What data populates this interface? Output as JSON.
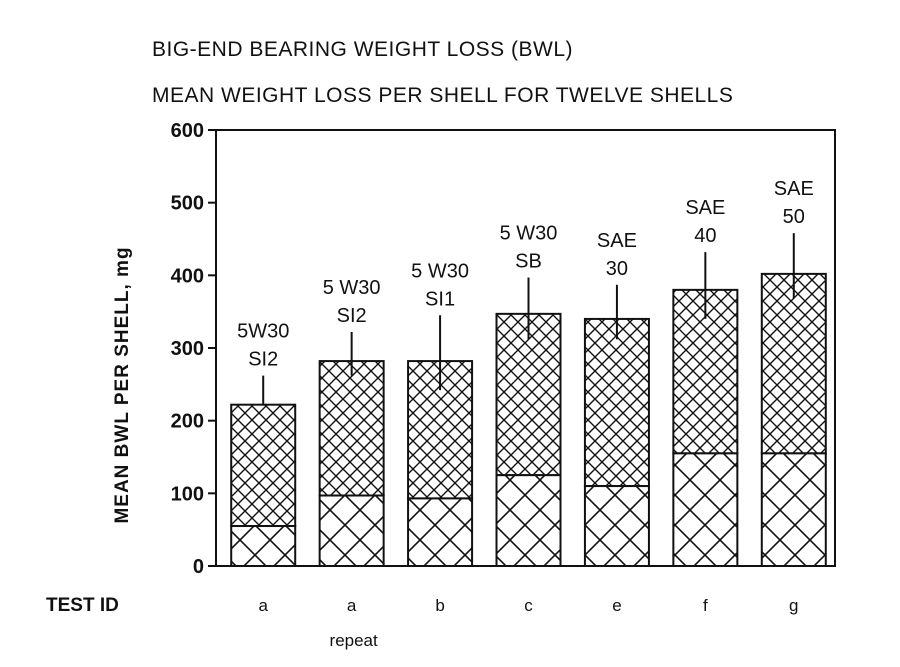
{
  "chart_data": {
    "type": "bar",
    "title": "BIG-END BEARING WEIGHT LOSS (BWL)",
    "subtitle": "MEAN WEIGHT LOSS PER SHELL FOR TWELVE SHELLS",
    "ylabel": "MEAN BWL PER SHELL, mg",
    "xaxis_title": "TEST ID",
    "ylim": [
      0,
      600
    ],
    "yticks": [
      "0",
      "100",
      "200",
      "300",
      "400",
      "500",
      "600"
    ],
    "categories": [
      "a",
      "a",
      "b",
      "c",
      "e",
      "f",
      "g"
    ],
    "category_sublabels": [
      "",
      "repeat",
      "",
      "",
      "",
      "",
      ""
    ],
    "bar_labels": [
      [
        "5W30",
        "SI2"
      ],
      [
        "5 W30",
        "SI2"
      ],
      [
        "5 W30",
        "SI1"
      ],
      [
        "5 W30",
        "SB"
      ],
      [
        "SAE",
        "30"
      ],
      [
        "SAE",
        "40"
      ],
      [
        "SAE",
        "50"
      ]
    ],
    "series": [
      {
        "values": [
          55,
          97,
          93,
          125,
          110,
          155,
          155
        ]
      },
      {
        "values": [
          222,
          282,
          282,
          347,
          340,
          380,
          402
        ]
      }
    ],
    "error_bar_upper": [
      262,
      322,
      345,
      397,
      387,
      432,
      458
    ],
    "error_bar_lower": [
      222,
      262,
      242,
      312,
      312,
      340,
      368
    ],
    "grid": false
  }
}
